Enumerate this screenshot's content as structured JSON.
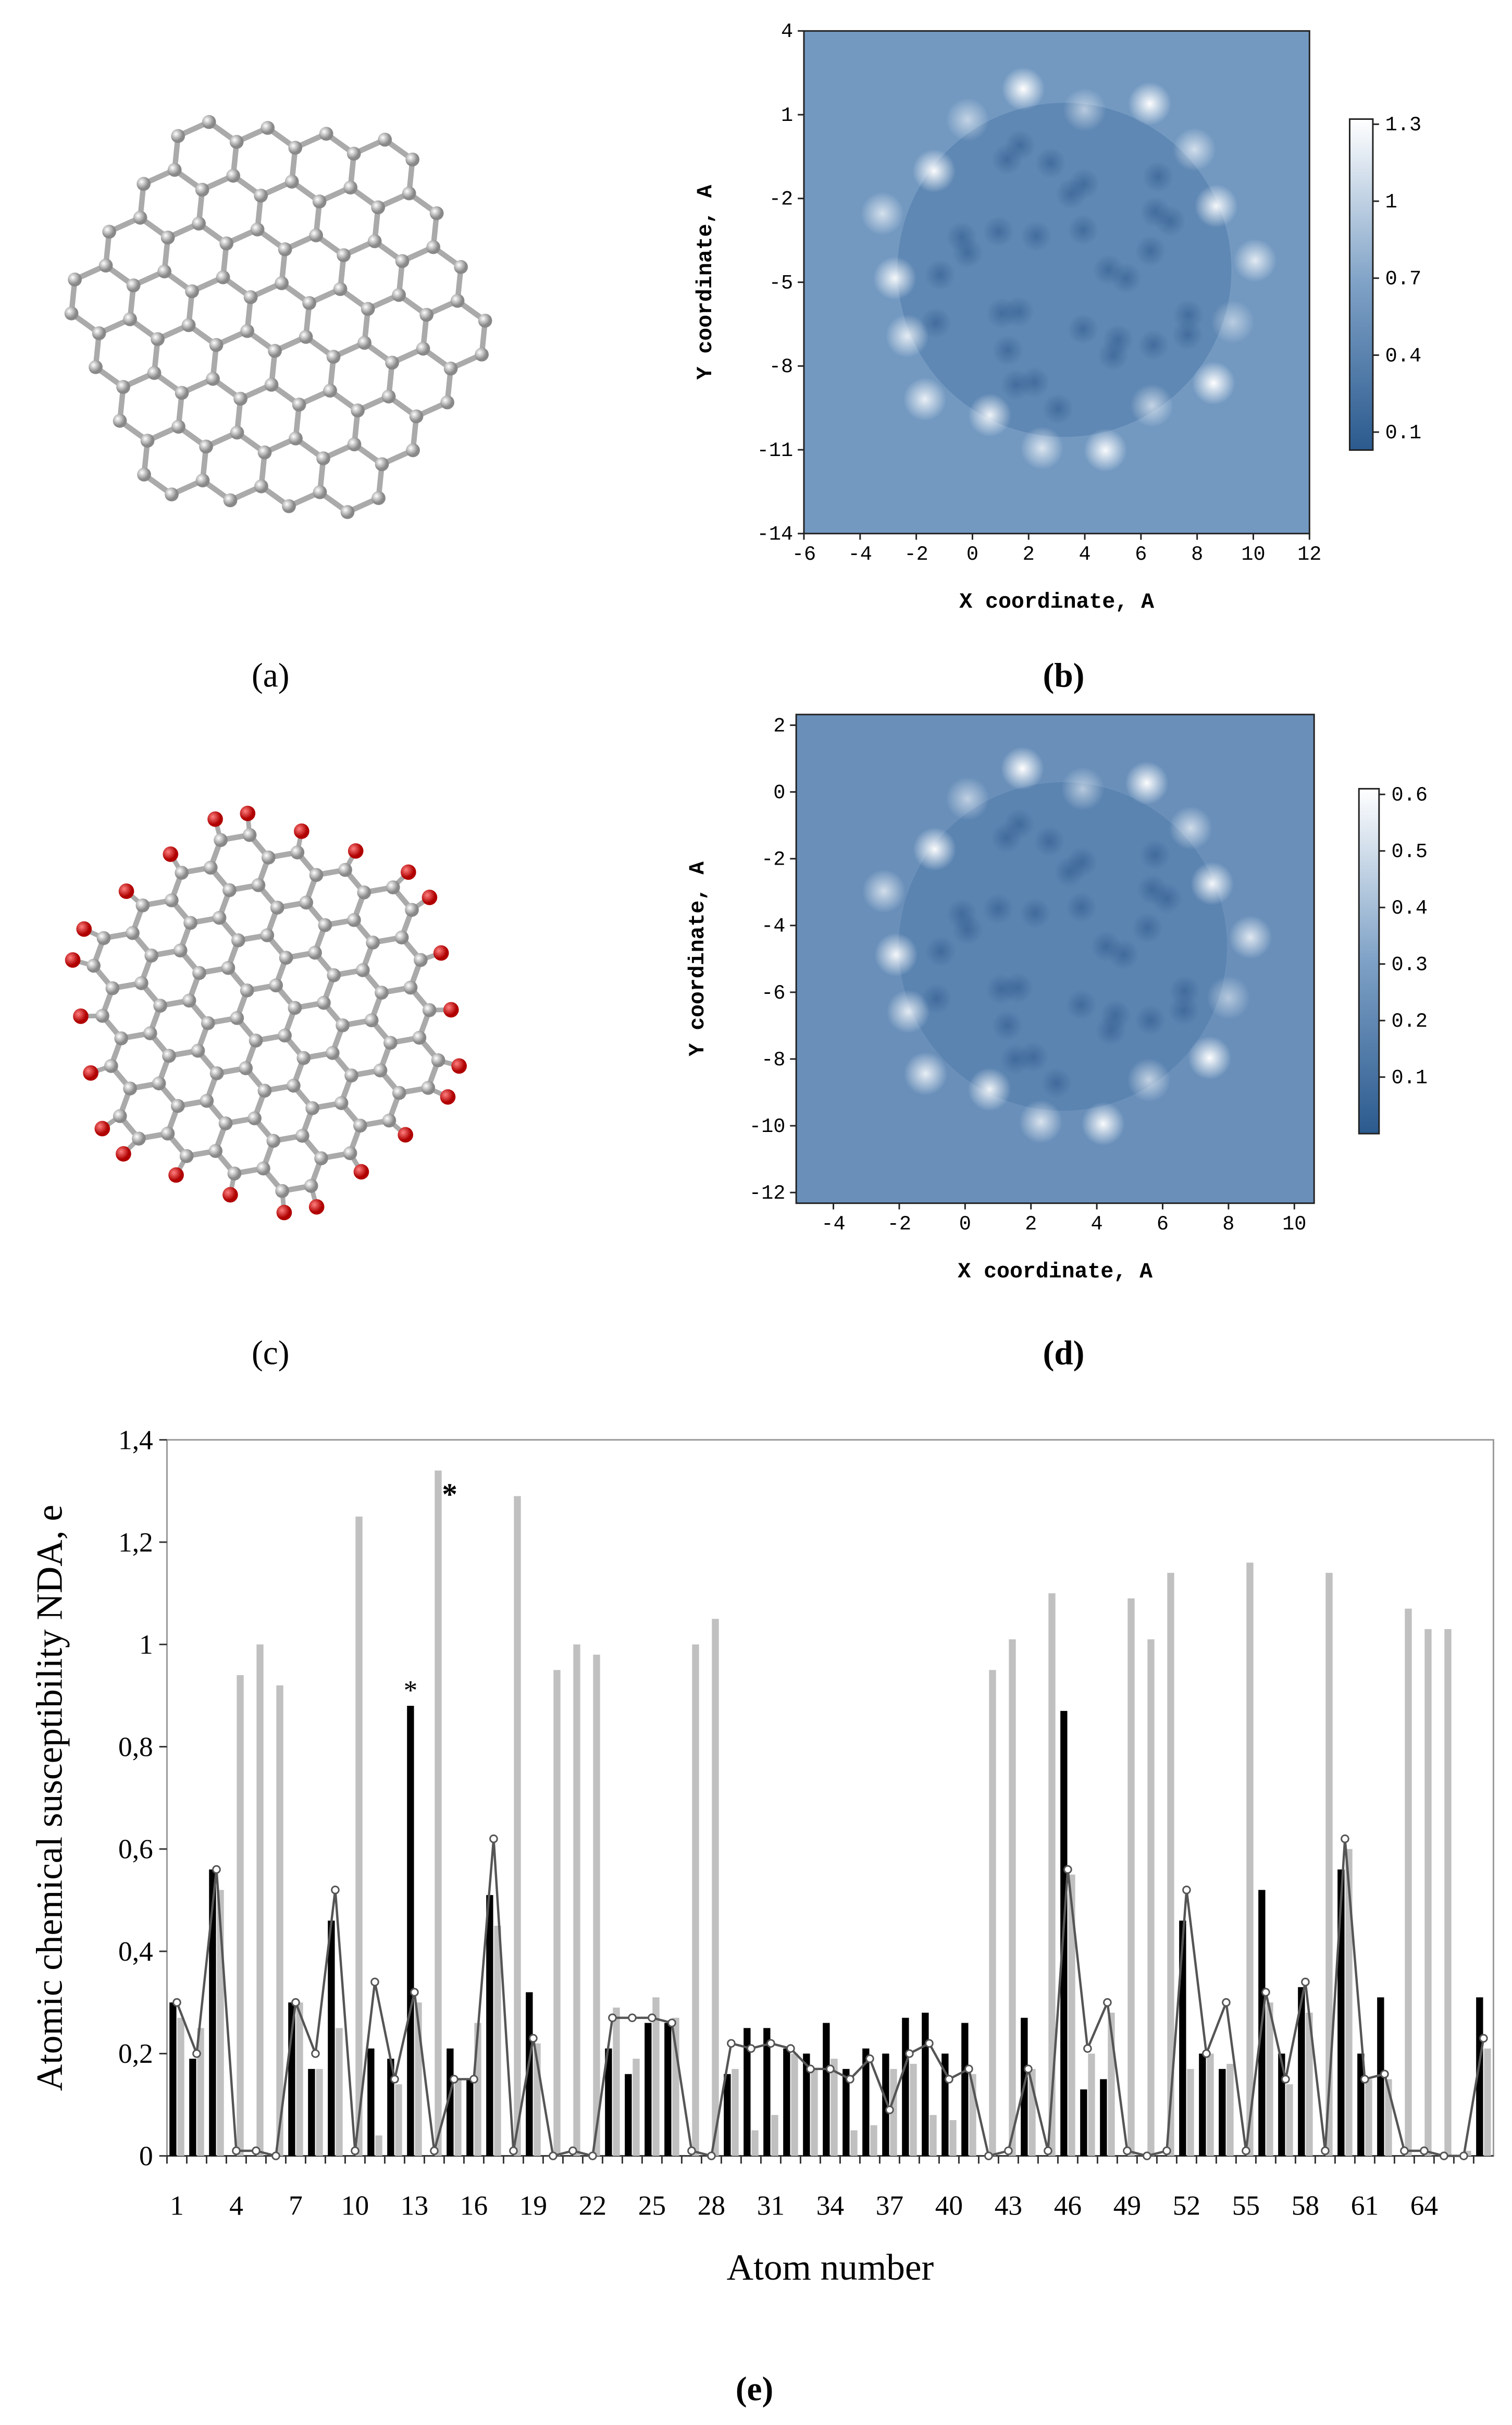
{
  "panel_labels": [
    "(a)",
    "(b)",
    "(c)",
    "(d)",
    "(e)"
  ],
  "chart_data": [
    {
      "type": "heatmap",
      "xlabel": "X coordinate, A",
      "ylabel": "Y coordinate, A",
      "xlim": [
        -6,
        12
      ],
      "xticks": [
        -6,
        -4,
        -2,
        0,
        2,
        4,
        6,
        8,
        10,
        12
      ],
      "ylim": [
        -14,
        4
      ],
      "yticks": [
        4,
        1,
        -2,
        -5,
        -8,
        -11,
        -14
      ],
      "clim": [
        0.03,
        1.32
      ],
      "colorbar_ticks": [
        1.3,
        1,
        0.7,
        0.4,
        0.1
      ]
    },
    {
      "type": "heatmap",
      "xlabel": "X coordinate, A",
      "ylabel": "Y coordinate, A",
      "xlim": [
        -5.13,
        10.6
      ],
      "xticks": [
        -4,
        -2,
        0,
        2,
        4,
        6,
        8,
        10
      ],
      "ylim": [
        -12.32,
        2.32
      ],
      "yticks": [
        2,
        0,
        -2,
        -4,
        -6,
        -8,
        -10,
        -12
      ],
      "clim": [
        0,
        0.61
      ],
      "colorbar_ticks": [
        0.6,
        0.5,
        0.4,
        0.3,
        0.2,
        0.1
      ]
    },
    {
      "type": "bar",
      "xlabel": "Atom number",
      "ylabel": "Atomic chemical susceptibility NDA, e",
      "categories": [
        "1",
        null,
        null,
        "4",
        null,
        null,
        "7",
        null,
        null,
        "10",
        null,
        null,
        "13",
        null,
        null,
        "16",
        null,
        null,
        "19",
        null,
        null,
        "22",
        null,
        null,
        "25",
        null,
        null,
        "28",
        null,
        null,
        "31",
        null,
        null,
        "34",
        null,
        null,
        "37",
        null,
        null,
        "40",
        null,
        null,
        "43",
        null,
        null,
        "46",
        null,
        null,
        "49",
        null,
        null,
        "52",
        null,
        null,
        "55",
        null,
        null,
        "58",
        null,
        null,
        "61",
        null,
        null,
        "64",
        null,
        null,
        null
      ],
      "ylim": [
        0,
        1.4
      ],
      "yticks": [
        0,
        {
          "value": 0.2,
          "label": "0,2"
        },
        {
          "value": 0.4,
          "label": "0,4"
        },
        {
          "value": 0.6,
          "label": "0,6"
        },
        {
          "value": 0.8,
          "label": "0,8"
        },
        1,
        {
          "value": 1.2,
          "label": "1,2"
        },
        {
          "value": 1.4,
          "label": "1,4"
        }
      ],
      "annotations": [
        "*",
        "*"
      ],
      "series": [
        {
          "color": "#c0c0c0",
          "values": [
            0.27,
            0.25,
            0.52,
            0.94,
            1.0,
            0.92,
            0.3,
            0.17,
            0.25,
            1.25,
            0.04,
            0.14,
            0.3,
            1.34,
            0.15,
            0.26,
            0.45,
            1.29,
            0.22,
            0.95,
            1.0,
            0.98,
            0.29,
            0.19,
            0.31,
            0.27,
            1.0,
            1.05,
            0.17,
            0.05,
            0.08,
            0.2,
            0.17,
            0.19,
            0.05,
            0.06,
            0.17,
            0.18,
            0.08,
            0.07,
            0.16,
            0.95,
            1.01,
            0.17,
            1.1,
            0.55,
            0.2,
            0.28,
            1.09,
            1.01,
            1.14,
            0.17,
            0.2,
            0.18,
            1.16,
            0.3,
            0.14,
            0.28,
            1.14,
            0.6,
            0.15,
            0.15,
            1.07,
            1.03,
            1.03,
            0.01,
            0.21
          ]
        },
        {
          "color": "#000000",
          "values": [
            0.3,
            0.19,
            0.56,
            0,
            0,
            0,
            0.3,
            0.17,
            0.46,
            0,
            0.21,
            0.19,
            0.88,
            0,
            0.21,
            0.15,
            0.51,
            0,
            0.32,
            0,
            0,
            0,
            0.21,
            0.16,
            0.26,
            0.26,
            0,
            0,
            0.16,
            0.25,
            0.25,
            0.21,
            0.2,
            0.26,
            0.17,
            0.21,
            0.2,
            0.27,
            0.28,
            0.2,
            0.26,
            0,
            0,
            0.27,
            0,
            0.87,
            0.13,
            0.15,
            0,
            0,
            0,
            0.46,
            0.2,
            0.17,
            0,
            0.52,
            0.2,
            0.33,
            0,
            0.56,
            0.2,
            0.31,
            0,
            0,
            0,
            0,
            0.31
          ]
        },
        {
          "type": "line",
          "color": "#555555",
          "values": [
            0.3,
            0.2,
            0.56,
            0.01,
            0.01,
            0,
            0.3,
            0.2,
            0.52,
            0.01,
            0.34,
            0.15,
            0.32,
            0.01,
            0.15,
            0.15,
            0.62,
            0.01,
            0.23,
            0,
            0.01,
            0,
            0.27,
            0.27,
            0.27,
            0.26,
            0.01,
            0,
            0.22,
            0.21,
            0.22,
            0.21,
            0.17,
            0.17,
            0.15,
            0.19,
            0.09,
            0.2,
            0.22,
            0.15,
            0.17,
            0,
            0.01,
            0.17,
            0.01,
            0.56,
            0.21,
            0.3,
            0.01,
            0,
            0.01,
            0.52,
            0.2,
            0.3,
            0.01,
            0.32,
            0.15,
            0.34,
            0.01,
            0.62,
            0.15,
            0.16,
            0.01,
            0.01,
            0,
            0,
            0.23
          ]
        }
      ]
    }
  ]
}
